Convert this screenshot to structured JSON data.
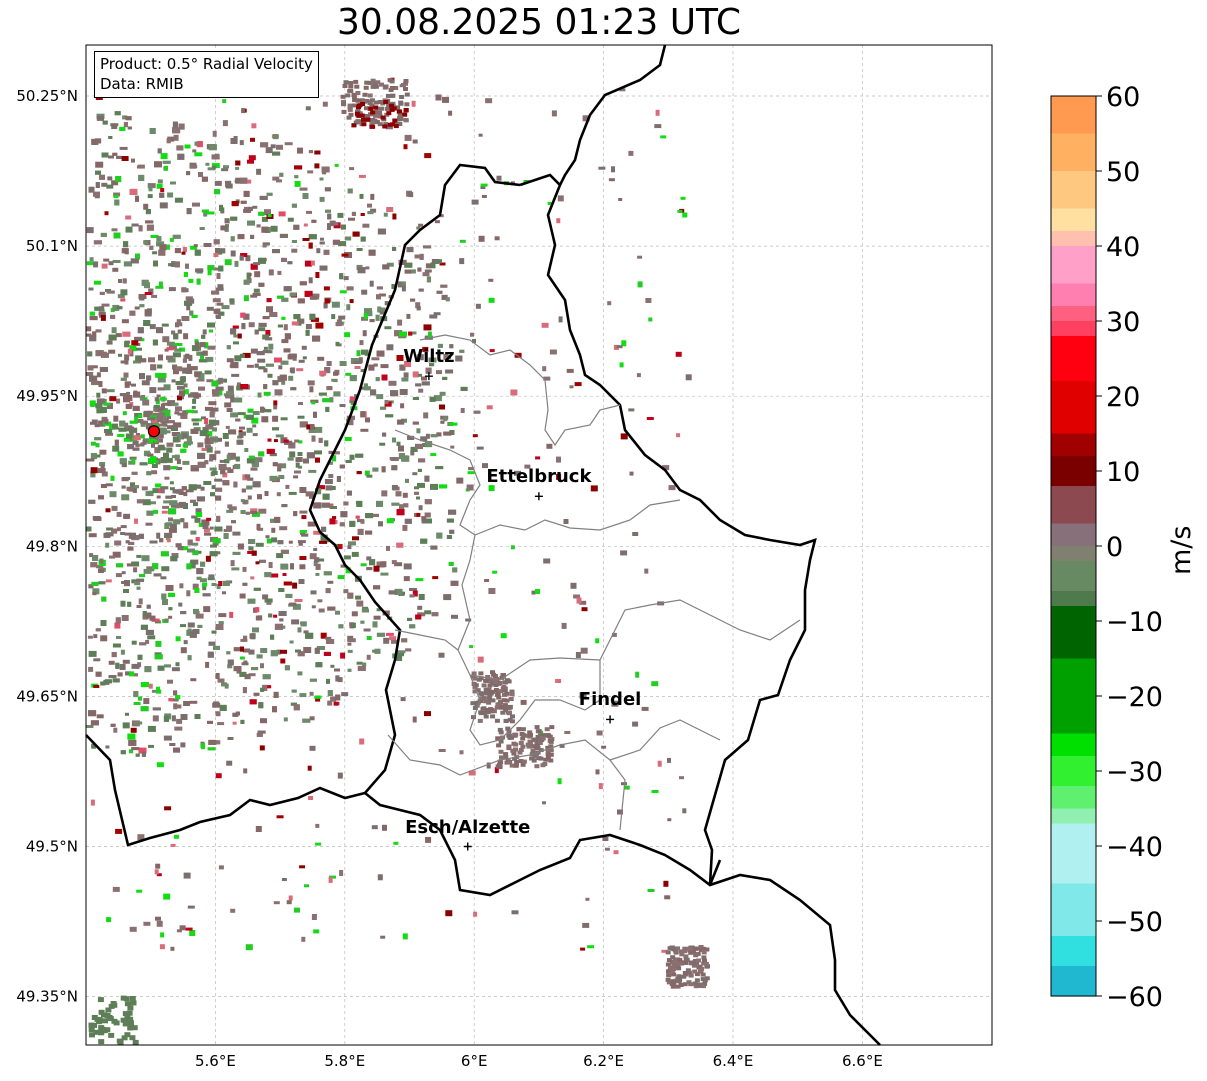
{
  "title": "30.08.2025 01:23 UTC",
  "info": {
    "product": "Product: 0.5° Radial Velocity",
    "data_source": "Data: RMIB"
  },
  "map": {
    "lon_range": [
      5.4,
      6.8
    ],
    "lat_range": [
      49.3,
      50.3
    ],
    "lon_ticks": [
      "5.6°E",
      "5.8°E",
      "6°E",
      "6.2°E",
      "6.4°E",
      "6.6°E"
    ],
    "lat_ticks": [
      "50.25°N",
      "50.1°N",
      "49.95°N",
      "49.8°N",
      "49.65°N",
      "49.5°N",
      "49.35°N"
    ],
    "grid": true,
    "radar_site": {
      "lon": 5.505,
      "lat": 49.915
    },
    "cities": [
      {
        "name": "Wiltz",
        "lon": 5.93,
        "lat": 49.97
      },
      {
        "name": "Ettelbruck",
        "lon": 6.1,
        "lat": 49.85
      },
      {
        "name": "Findel",
        "lon": 6.21,
        "lat": 49.627
      },
      {
        "name": "Esch/Alzette",
        "lon": 5.99,
        "lat": 49.5
      }
    ]
  },
  "colorbar": {
    "label": "m/s",
    "ticks": [
      "60",
      "50",
      "40",
      "30",
      "20",
      "10",
      "0",
      "−10",
      "−20",
      "−30",
      "−40",
      "−50",
      "−60"
    ],
    "vmin": -60,
    "vmax": 60
  },
  "colors": {
    "border": "#000000",
    "canton": "#808080",
    "radar_site": "#ff0000"
  }
}
